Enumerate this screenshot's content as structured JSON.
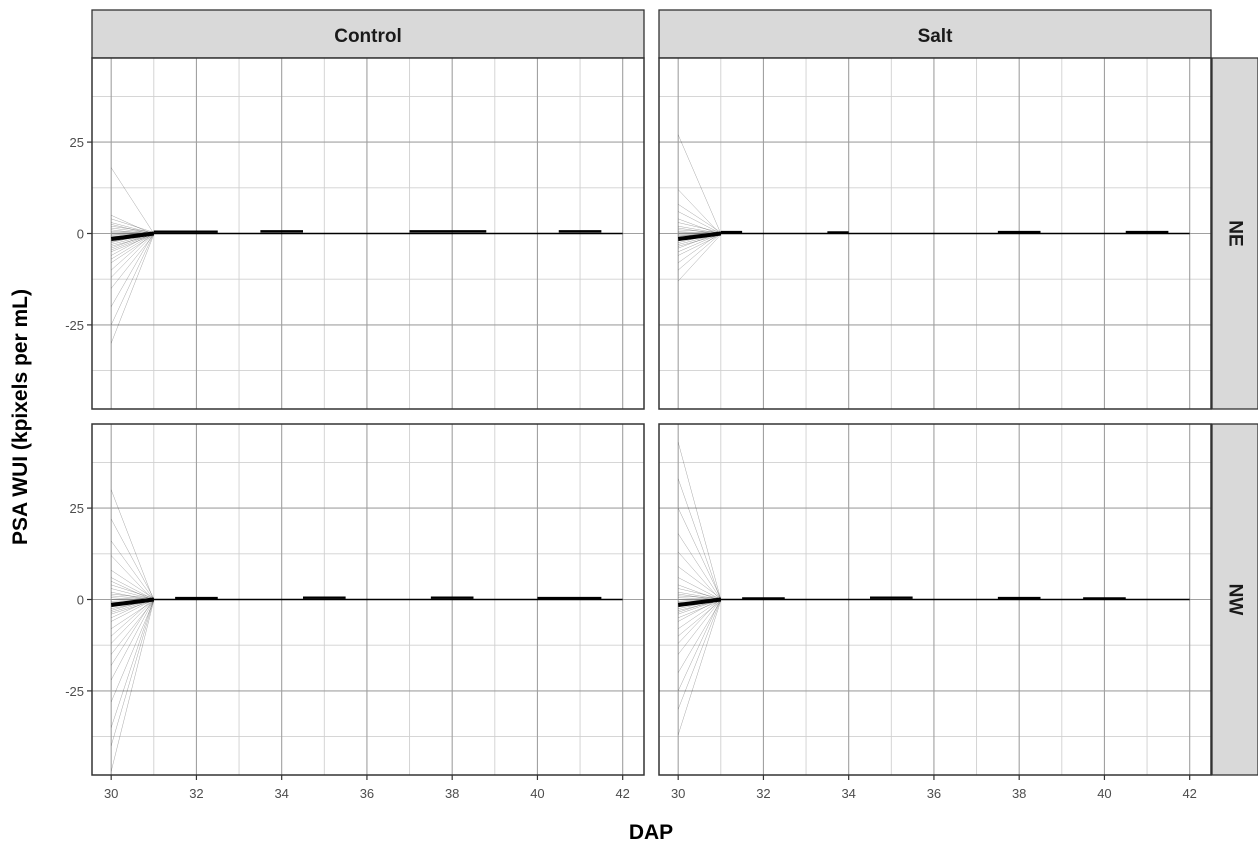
{
  "chart_data": {
    "type": "line",
    "xlabel": "DAP",
    "ylabel": "PSA WUI (kpixels per mL)",
    "columns": [
      "Control",
      "Salt"
    ],
    "rows": [
      "NE",
      "NW"
    ],
    "x_ticks": [
      30,
      32,
      34,
      36,
      38,
      40,
      42
    ],
    "y_ticks": [
      25,
      0,
      -25
    ],
    "y_tick_labels": [
      "25",
      "0",
      "-25"
    ],
    "xlim": [
      29.55,
      42.5
    ],
    "ylim": [
      -48,
      48
    ],
    "grid": true,
    "panels": [
      {
        "column": "Control",
        "row": "NE",
        "day30": [
          -30,
          -25,
          -20,
          -15,
          -12,
          -10,
          -8,
          -7,
          -6,
          -5,
          -4.5,
          -4,
          -3.5,
          -3,
          -2.5,
          -2.2,
          -2,
          -1.8,
          -1.5,
          -1.2,
          -1,
          -0.8,
          -0.5,
          -0.3,
          0,
          0.3,
          0.5,
          1,
          1.5,
          2,
          2.5,
          3,
          4,
          5,
          18
        ],
        "day31_ranges": [
          [
            31,
            32.5,
            0.5
          ],
          [
            33.5,
            34.5,
            0.6
          ],
          [
            37,
            38.8,
            0.6
          ],
          [
            40.5,
            41.5,
            0.6
          ]
        ]
      },
      {
        "column": "Salt",
        "row": "NE",
        "day30": [
          -13,
          -10,
          -8,
          -6,
          -5,
          -4,
          -3.5,
          -3,
          -2.5,
          -2,
          -1.8,
          -1.5,
          -1.2,
          -1,
          -0.8,
          -0.5,
          -0.3,
          0,
          0.3,
          0.5,
          1,
          1.5,
          2,
          3,
          4,
          6,
          8,
          12,
          27
        ],
        "day31_ranges": [
          [
            31,
            31.5,
            0.4
          ],
          [
            33.5,
            34,
            0.3
          ],
          [
            37.5,
            38.5,
            0.4
          ],
          [
            40.5,
            41.5,
            0.4
          ]
        ]
      },
      {
        "column": "Control",
        "row": "NW",
        "day30": [
          -47,
          -40,
          -35,
          -28,
          -22,
          -18,
          -15,
          -12,
          -10,
          -8,
          -6,
          -5,
          -4,
          -3.5,
          -3,
          -2.5,
          -2,
          -1.8,
          -1.5,
          -1.2,
          -1,
          -0.8,
          -0.5,
          0,
          0.5,
          1,
          1.5,
          2,
          3,
          4,
          5,
          6,
          8,
          12,
          16,
          22,
          30
        ],
        "day31_ranges": [
          [
            31.5,
            32.5,
            0.4
          ],
          [
            34.5,
            35.5,
            0.5
          ],
          [
            37.5,
            38.5,
            0.5
          ],
          [
            40,
            41.5,
            0.4
          ]
        ]
      },
      {
        "column": "Salt",
        "row": "NW",
        "day30": [
          -37,
          -30,
          -25,
          -20,
          -15,
          -12,
          -10,
          -8,
          -6,
          -5,
          -4,
          -3.5,
          -3,
          -2.5,
          -2,
          -1.8,
          -1.5,
          -1.2,
          -1,
          -0.8,
          -0.5,
          0,
          0.5,
          1,
          1.5,
          2,
          3,
          4,
          6,
          9,
          13,
          18,
          25,
          33,
          43
        ],
        "day31_ranges": [
          [
            31.5,
            32.5,
            0.3
          ],
          [
            34.5,
            35.5,
            0.5
          ],
          [
            37.5,
            38.5,
            0.4
          ],
          [
            39.5,
            40.5,
            0.3
          ]
        ]
      }
    ]
  }
}
